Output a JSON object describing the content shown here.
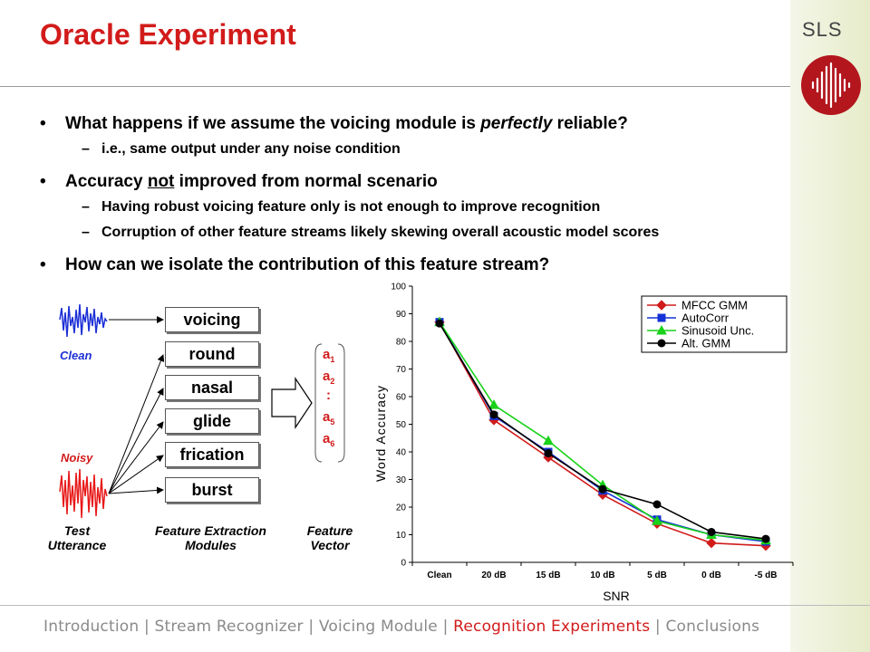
{
  "slide": {
    "title": "Oracle Experiment",
    "org": "SLS"
  },
  "bullets": [
    {
      "text_parts": [
        "What happens if we assume the voicing module is ",
        "perfectly",
        " reliable?"
      ],
      "sub": [
        "i.e., same output under any noise condition"
      ]
    },
    {
      "text_parts": [
        "Accuracy ",
        "not",
        " improved from normal scenario"
      ],
      "sub": [
        "Having robust voicing feature only is not enough to improve recognition",
        "Corruption of other feature streams likely skewing overall acoustic model scores"
      ]
    },
    {
      "text_parts": [
        "How can we isolate the contribution of this feature stream?"
      ],
      "sub": []
    }
  ],
  "diagram": {
    "clean_label": "Clean",
    "noisy_label": "Noisy",
    "modules": [
      "voicing",
      "round",
      "nasal",
      "glide",
      "frication",
      "burst"
    ],
    "feature_vector": [
      {
        "base": "a",
        "sub": "1"
      },
      {
        "base": "a",
        "sub": "2"
      },
      {
        "base": ":",
        "sub": ""
      },
      {
        "base": "a",
        "sub": "5"
      },
      {
        "base": "a",
        "sub": "6"
      }
    ],
    "captions": {
      "test": [
        "Test",
        "Utterance"
      ],
      "modules": [
        "Feature Extraction",
        "Modules"
      ],
      "vector": [
        "Feature",
        "Vector"
      ]
    },
    "colors": {
      "clean_wave": "#1c2fd6",
      "noisy_wave": "#e81919",
      "clean_label": "#1c2fd6",
      "noisy_label": "#d21b1b"
    }
  },
  "chart_data": {
    "type": "line",
    "categories": [
      "Clean",
      "20 dB",
      "15 dB",
      "10 dB",
      "5 dB",
      "0 dB",
      "-5 dB"
    ],
    "series": [
      {
        "name": "MFCC GMM",
        "color": "#d21b1b",
        "marker": "diamond",
        "values": [
          87,
          51.5,
          38,
          24.5,
          14,
          7,
          6
        ]
      },
      {
        "name": "AutoCorr",
        "color": "#1433d6",
        "marker": "square",
        "values": [
          87,
          53,
          40,
          26,
          15.5,
          10,
          7.5
        ]
      },
      {
        "name": "Sinusoid Unc.",
        "color": "#19d219",
        "marker": "triangle",
        "values": [
          87,
          57,
          44,
          28,
          15,
          10,
          8
        ]
      },
      {
        "name": "Alt. GMM",
        "color": "#000000",
        "marker": "circle",
        "values": [
          86.5,
          53.5,
          39.5,
          26.5,
          21,
          11,
          8.5
        ]
      }
    ],
    "xlabel": "SNR",
    "ylabel": "Word Accuracy",
    "ylim": [
      0,
      100
    ],
    "yticks": [
      "0",
      "10",
      "20",
      "30",
      "40",
      "50",
      "60",
      "70",
      "80",
      "90",
      "100"
    ],
    "grid": false,
    "legend": "top-right"
  },
  "footer": {
    "items": [
      "Introduction",
      "Stream Recognizer",
      "Voicing Module",
      "Recognition Experiments",
      "Conclusions"
    ],
    "active_index": 3
  }
}
